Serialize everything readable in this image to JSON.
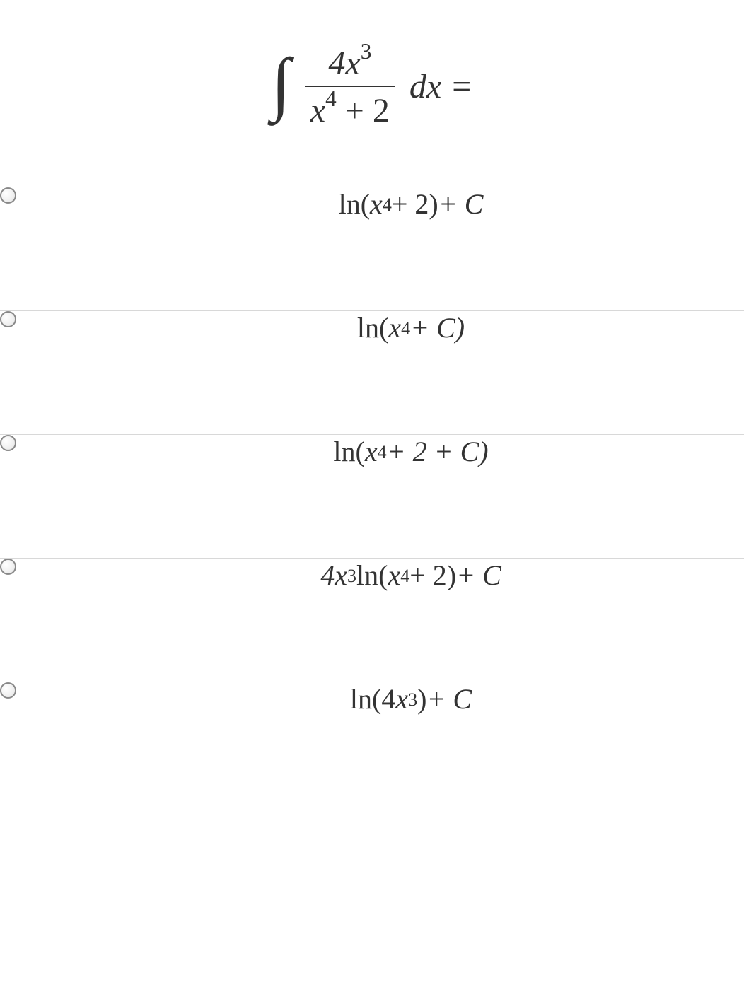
{
  "question": {
    "numerator_coef": "4",
    "numerator_var": "x",
    "numerator_exp": "3",
    "denominator_var": "x",
    "denominator_exp": "4",
    "denominator_const": " + 2",
    "dx_equals": "dx ="
  },
  "options": [
    {
      "prefix": "",
      "ln_label": "ln(",
      "inner_var": "x",
      "inner_exp": "4",
      "inner_rest": " + 2)",
      "suffix": " + C"
    },
    {
      "prefix": "",
      "ln_label": "ln(",
      "inner_var": "x",
      "inner_exp": "4",
      "inner_rest": " + C)",
      "suffix": ""
    },
    {
      "prefix": "",
      "ln_label": "ln(",
      "inner_var": "x",
      "inner_exp": "4",
      "inner_rest": " + 2 + C)",
      "suffix": ""
    },
    {
      "prefix": "4x",
      "prefix_exp": "3",
      "prefix_sp": " ",
      "ln_label": "ln(",
      "inner_var": "x",
      "inner_exp": "4",
      "inner_rest": " + 2)",
      "suffix": " + C"
    },
    {
      "prefix": "",
      "ln_label": "ln(4",
      "inner_var": "x",
      "inner_exp": "3",
      "inner_rest": ")",
      "suffix": " + C"
    }
  ],
  "colors": {
    "text": "#333333",
    "border": "#d8d8d8",
    "background": "#ffffff"
  },
  "typography": {
    "question_fontsize": 48,
    "option_fontsize": 40,
    "font_family": "Times New Roman"
  }
}
